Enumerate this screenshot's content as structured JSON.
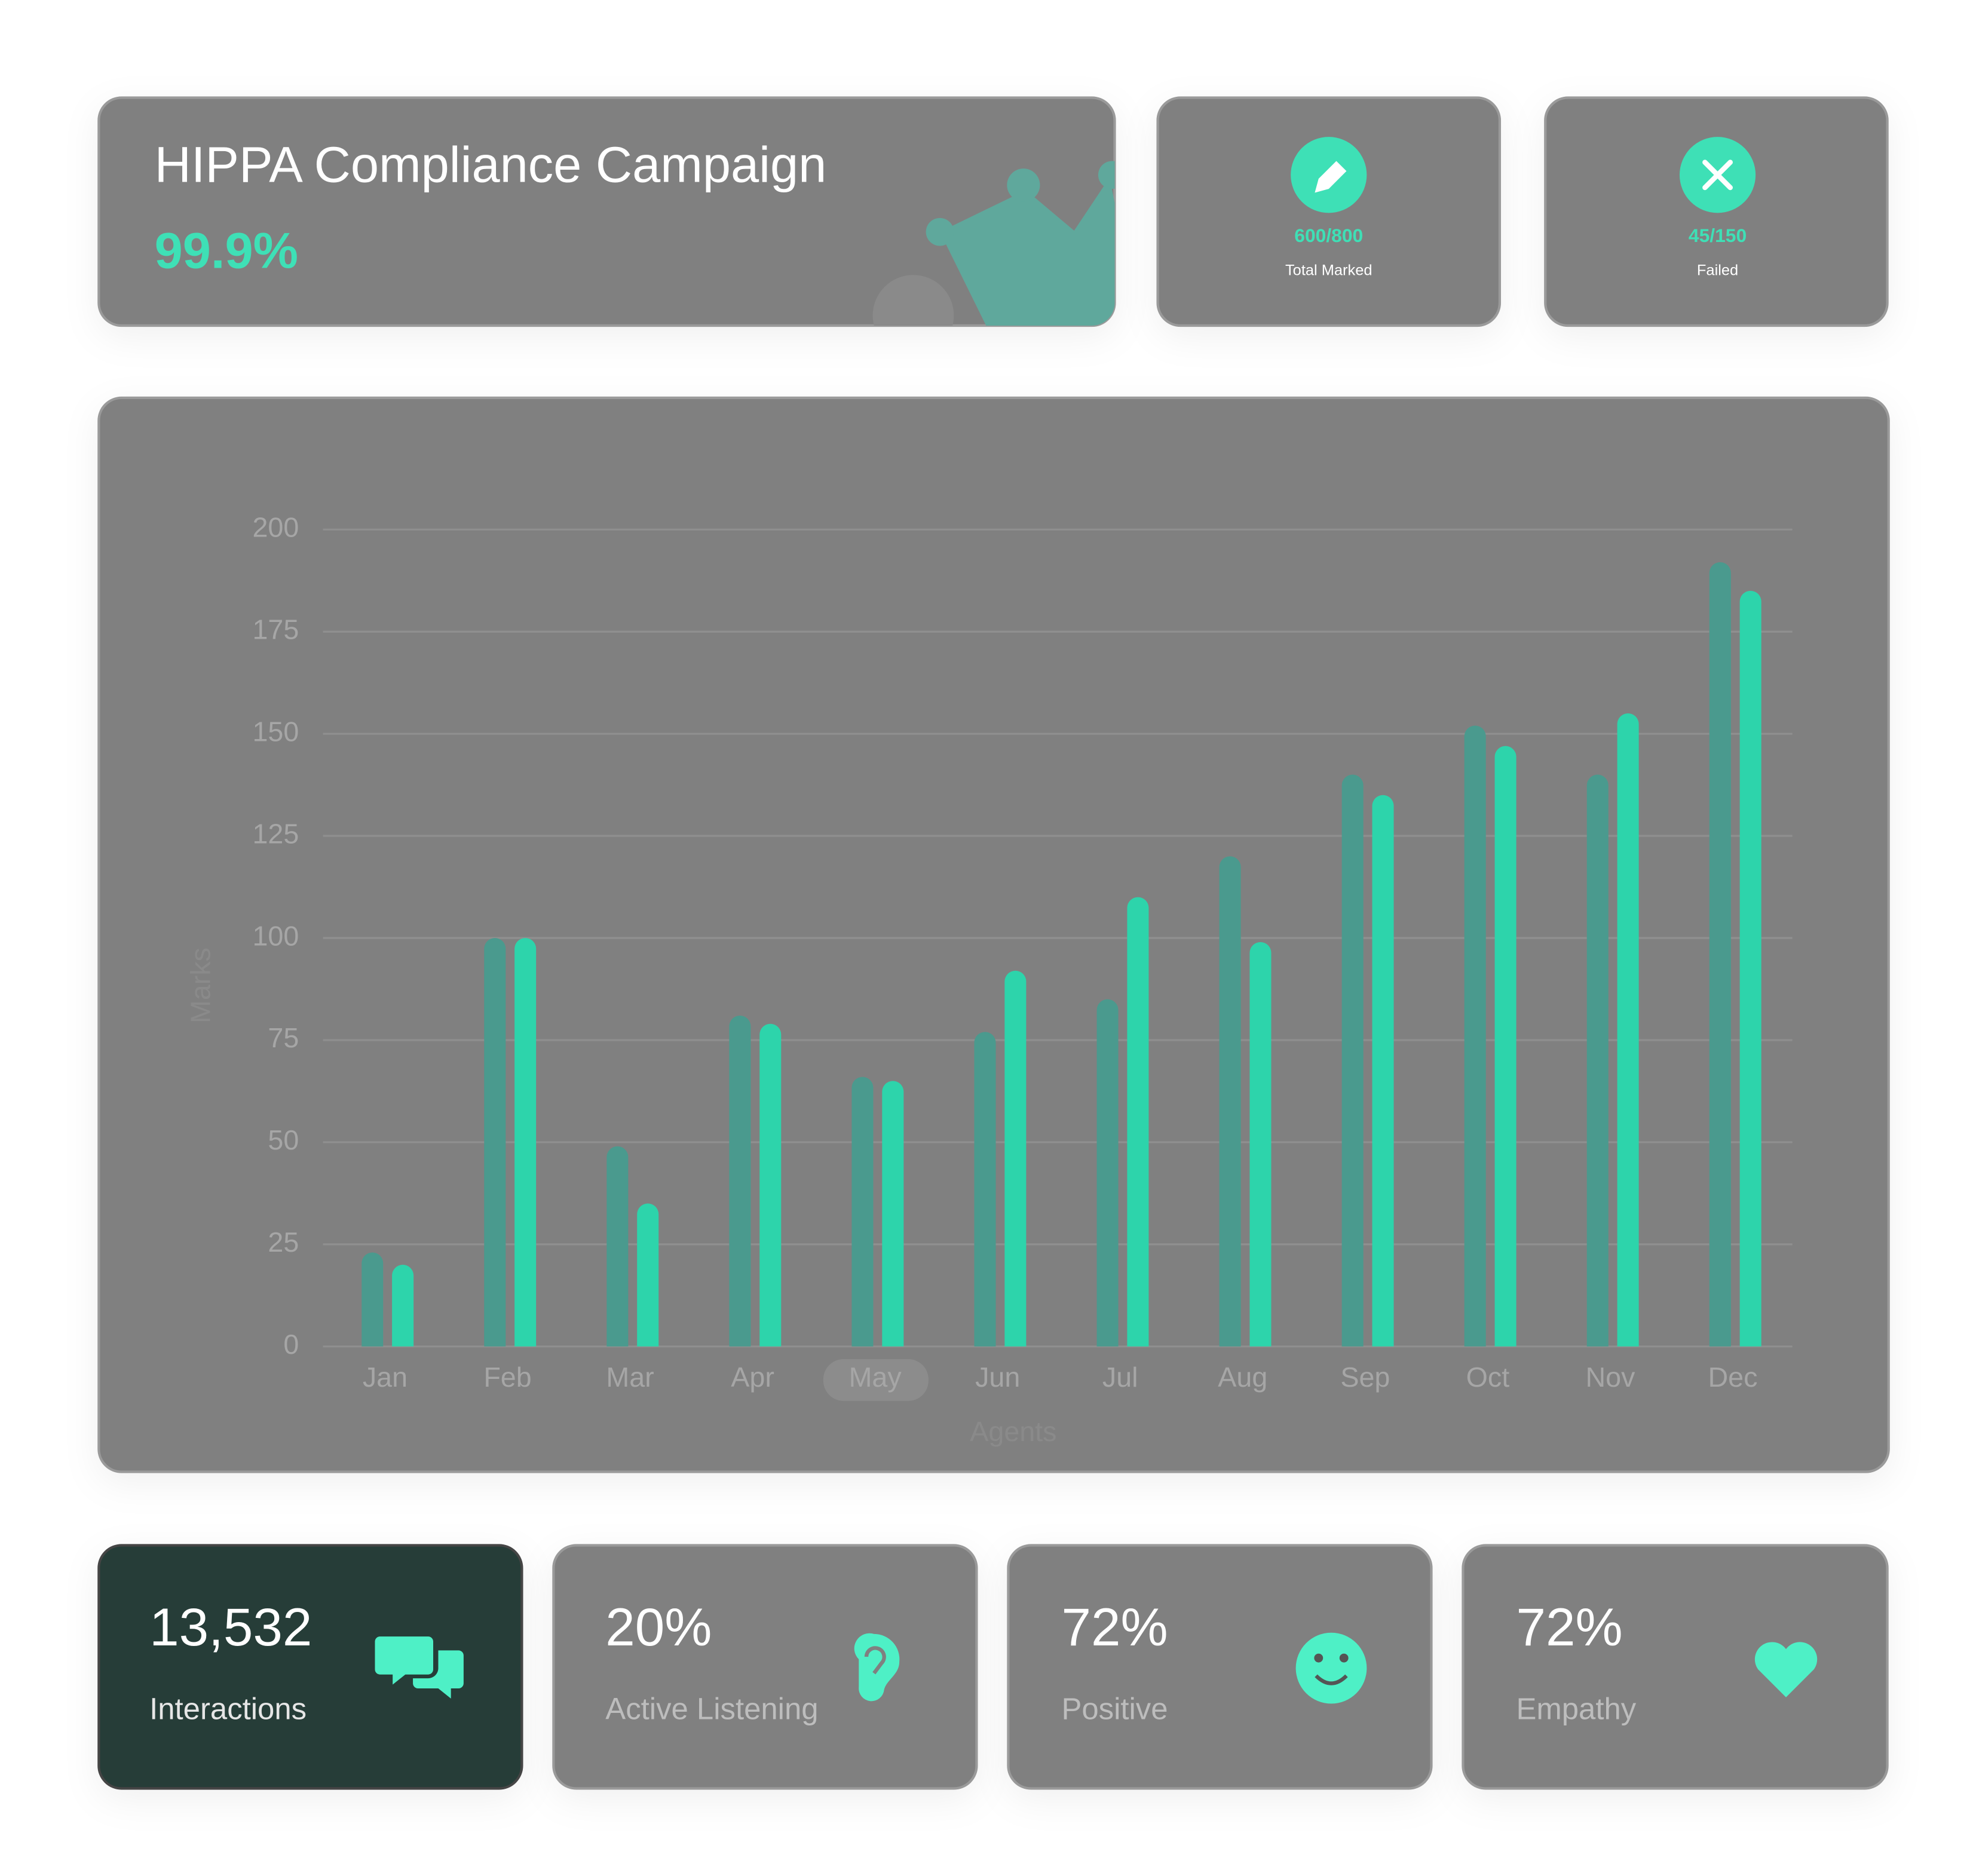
{
  "header": {
    "title": "HIPPA Compliance Campaign",
    "score": "99.9%"
  },
  "stats": [
    {
      "value": "600/800",
      "label": "Total Marked"
    },
    {
      "value": "45/150",
      "label": "Failed"
    }
  ],
  "chart_data": {
    "type": "bar",
    "y_label": "Marks",
    "x_label": "Agents",
    "categories": [
      "Jan",
      "Feb",
      "Mar",
      "Apr",
      "May",
      "Jun",
      "Jul",
      "Aug",
      "Sep",
      "Oct",
      "Nov",
      "Dec"
    ],
    "series": [
      {
        "color": "#4a9a8e",
        "values": [
          23,
          100,
          49,
          81,
          66,
          77,
          85,
          120,
          140,
          152,
          140,
          192
        ]
      },
      {
        "color": "#2dd4ab",
        "values": [
          20,
          100,
          35,
          79,
          65,
          92,
          110,
          99,
          135,
          147,
          155,
          185
        ]
      }
    ],
    "ylim": [
      0,
      200
    ],
    "yticks": [
      0,
      25,
      50,
      75,
      100,
      125,
      150,
      175,
      200
    ],
    "grid": true
  },
  "metrics": [
    {
      "value": "13,532",
      "label": "Interactions"
    },
    {
      "value": "20%",
      "label": "Active Listening"
    },
    {
      "value": "72%",
      "label": "Positive"
    },
    {
      "value": "72%",
      "label": "Empathy"
    }
  ]
}
